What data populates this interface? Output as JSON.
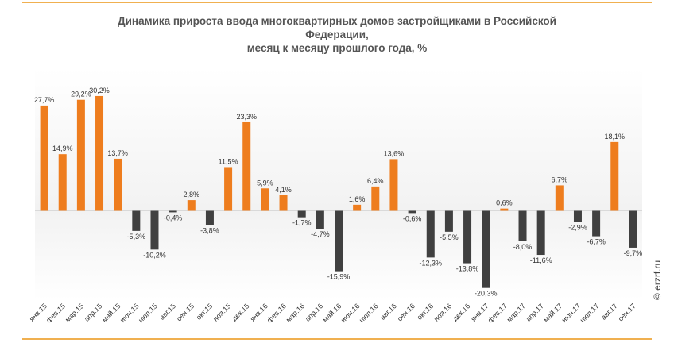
{
  "chart_data": {
    "type": "bar",
    "title": [
      "Динамика прироста ввода многоквартирных домов застройщиками в Российской",
      "Федерации,",
      "месяц к месяцу прошлого года, %"
    ],
    "xlabel": "",
    "ylabel": "",
    "ylim": [
      -23.5,
      37.5
    ],
    "categories": [
      "янв.15",
      "фев.15",
      "мар.15",
      "апр.15",
      "май.15",
      "июн.15",
      "июл.15",
      "авг.15",
      "сен.15",
      "окт.15",
      "ноя.15",
      "дек.15",
      "янв.16",
      "фев.16",
      "мар.16",
      "апр.16",
      "май.16",
      "июн.16",
      "июл.16",
      "авг.16",
      "сен.16",
      "окт.16",
      "ноя.16",
      "дек.16",
      "янв.17",
      "фев.17",
      "мар.17",
      "апр.17",
      "май.17",
      "июн.17",
      "июл.17",
      "авг.17",
      "сен.17"
    ],
    "values": [
      27.7,
      14.9,
      29.2,
      30.2,
      13.7,
      -5.3,
      -10.2,
      -0.4,
      2.8,
      -3.8,
      11.5,
      23.3,
      5.9,
      4.1,
      -1.7,
      -4.7,
      -15.9,
      1.6,
      6.4,
      13.6,
      -0.6,
      -12.3,
      -5.5,
      -13.8,
      -20.3,
      0.6,
      -8.0,
      -11.6,
      6.7,
      -2.9,
      -6.7,
      18.1,
      -9.7
    ],
    "value_labels": [
      "27,7%",
      "14,9%",
      "29,2%",
      "30,2%",
      "13,7%",
      "-5,3%",
      "-10,2%",
      "-0,4%",
      "2,8%",
      "-3,8%",
      "11,5%",
      "23,3%",
      "5,9%",
      "4,1%",
      "-1,7%",
      "-4,7%",
      "-15,9%",
      "1,6%",
      "6,4%",
      "13,6%",
      "-0,6%",
      "-12,3%",
      "-5,5%",
      "-13,8%",
      "-20,3%",
      "0,6%",
      "-8,0%",
      "-11,6%",
      "6,7%",
      "-2,9%",
      "-6,7%",
      "18,1%",
      "-9,7%"
    ],
    "grid": false,
    "legend": "none",
    "colors": {
      "positive": "#ee7d1e",
      "negative": "#404040",
      "frame": "#f0b050",
      "title": "#555555"
    }
  },
  "watermark": "© erzrf.ru"
}
